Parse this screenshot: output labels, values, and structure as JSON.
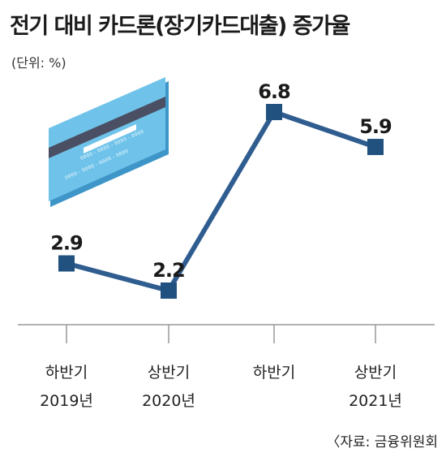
{
  "title": "전기 대비 카드론(장기카드대출) 증가율",
  "unit": "(단위: %)",
  "source": "〈자료: 금융위원회",
  "card": {
    "number_top": "0000 - 0000 - 0000 - 0000",
    "number_bottom": "0000 - 0000 - 0000 - 0000"
  },
  "colors": {
    "line": "#2f5d8f",
    "marker": "#21517f",
    "card_face": "#6fc3ea",
    "card_stripe": "#4a4f63",
    "card_edge": "#3e96c8"
  },
  "chart_data": {
    "type": "line",
    "title": "전기 대비 카드론(장기카드대출) 증가율",
    "unit": "%",
    "categories": [
      {
        "line1": "하반기",
        "line2": "2019년"
      },
      {
        "line1": "상반기",
        "line2": "2020년"
      },
      {
        "line1": "하반기",
        "line2": ""
      },
      {
        "line1": "상반기",
        "line2": "2021년"
      }
    ],
    "values": [
      2.9,
      2.2,
      6.8,
      5.9
    ],
    "value_labels": [
      "2.9",
      "2.2",
      "6.8",
      "5.9"
    ],
    "ylim": [
      0,
      8
    ],
    "grid": false,
    "legend": "none"
  }
}
